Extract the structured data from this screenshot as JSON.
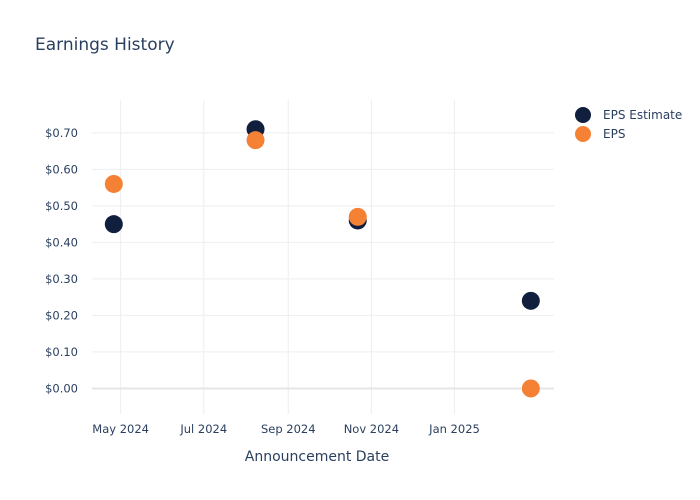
{
  "chart_data": {
    "type": "scatter",
    "title": "Earnings History",
    "xlabel": "Announcement Date",
    "ylabel": "",
    "x_ticks": [
      "May 2024",
      "Jul 2024",
      "Sep 2024",
      "Nov 2024",
      "Jan 2025"
    ],
    "x_tick_dates": [
      "2024-05-01",
      "2024-07-01",
      "2024-09-01",
      "2024-11-01",
      "2025-01-01"
    ],
    "xlim": [
      "2024-04-10",
      "2025-03-15"
    ],
    "y_ticks": [
      "$0.00",
      "$0.10",
      "$0.20",
      "$0.30",
      "$0.40",
      "$0.50",
      "$0.60",
      "$0.70"
    ],
    "ylim": [
      -0.07,
      0.79
    ],
    "grid": true,
    "legend_position": "top-right",
    "series": [
      {
        "name": "EPS Estimate",
        "color": "#0f1f3d",
        "points": [
          {
            "x": "2024-04-26",
            "y": 0.45
          },
          {
            "x": "2024-08-08",
            "y": 0.71
          },
          {
            "x": "2024-10-22",
            "y": 0.46
          },
          {
            "x": "2025-02-26",
            "y": 0.24
          }
        ]
      },
      {
        "name": "EPS",
        "color": "#f58134",
        "points": [
          {
            "x": "2024-04-26",
            "y": 0.56
          },
          {
            "x": "2024-08-08",
            "y": 0.68
          },
          {
            "x": "2024-10-22",
            "y": 0.47
          },
          {
            "x": "2025-02-26",
            "y": 0.0
          }
        ]
      }
    ]
  }
}
